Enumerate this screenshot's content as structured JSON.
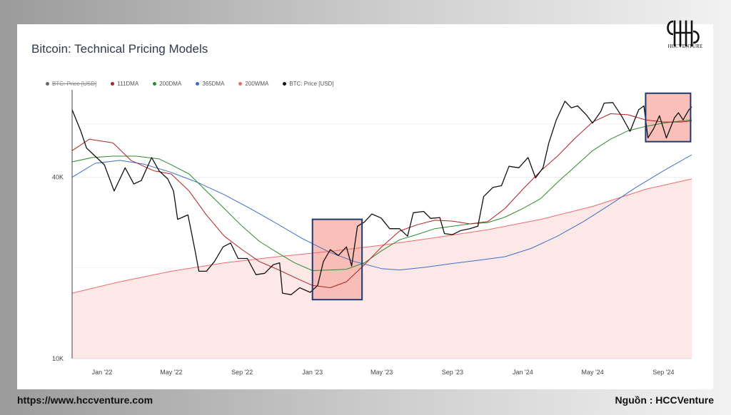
{
  "card": {
    "title": "Bitcoin: Technical Pricing Models"
  },
  "brand": {
    "name": "HCCVENTURE"
  },
  "footer": {
    "url": "https://www.hccventure.com",
    "source": "Nguồn : HCCVenture"
  },
  "colors": {
    "price": "#111111",
    "dma111": "#b22222",
    "dma200": "#2e8b2e",
    "dma365": "#3b6fc4",
    "wma200": "#ef6b6b",
    "band_fill": "#fde8e8",
    "highlight_fill": "#f7b5ad",
    "highlight_border": "#1f3a6e"
  },
  "chart_data": {
    "type": "line",
    "title": "Bitcoin: Technical Pricing Models",
    "y_scale": "log",
    "y_ticks": [
      {
        "label": "10K",
        "value": 10000
      },
      {
        "label": "40K",
        "value": 40000
      }
    ],
    "ylim": [
      10000,
      78000
    ],
    "x_ticks": [
      {
        "label": "Jan '22",
        "date": "2022-01-01"
      },
      {
        "label": "May '22",
        "date": "2022-05-01"
      },
      {
        "label": "Sep '22",
        "date": "2022-09-01"
      },
      {
        "label": "Jan '23",
        "date": "2023-01-01"
      },
      {
        "label": "May '23",
        "date": "2023-05-01"
      },
      {
        "label": "Sep '23",
        "date": "2023-09-01"
      },
      {
        "label": "Jan '24",
        "date": "2024-01-01"
      },
      {
        "label": "May '24",
        "date": "2024-05-01"
      },
      {
        "label": "Sep '24",
        "date": "2024-09-01"
      }
    ],
    "x_range": [
      "2021-11-10",
      "2024-10-20"
    ],
    "legend": [
      {
        "name": "BTC: Price [USD]",
        "color": "#666666",
        "hidden": true
      },
      {
        "name": "111DMA",
        "color": "#b22222",
        "hidden": false
      },
      {
        "name": "200DMA",
        "color": "#2e8b2e",
        "hidden": false
      },
      {
        "name": "365DMA",
        "color": "#3b6fc4",
        "hidden": false
      },
      {
        "name": "200WMA",
        "color": "#ef6b6b",
        "hidden": false
      },
      {
        "name": "BTC: Price [USD]",
        "color": "#111111",
        "hidden": false
      }
    ],
    "series": [
      {
        "name": "BTC: Price [USD]",
        "x": [
          "2021-11-10",
          "2021-11-25",
          "2021-12-05",
          "2021-12-20",
          "2022-01-05",
          "2022-01-22",
          "2022-02-10",
          "2022-02-25",
          "2022-03-10",
          "2022-03-28",
          "2022-04-10",
          "2022-04-25",
          "2022-05-05",
          "2022-05-12",
          "2022-05-30",
          "2022-06-12",
          "2022-06-18",
          "2022-07-01",
          "2022-07-15",
          "2022-07-30",
          "2022-08-12",
          "2022-08-25",
          "2022-09-10",
          "2022-09-25",
          "2022-10-10",
          "2022-10-25",
          "2022-11-05",
          "2022-11-10",
          "2022-11-25",
          "2022-12-10",
          "2022-12-28",
          "2023-01-10",
          "2023-01-20",
          "2023-02-01",
          "2023-02-15",
          "2023-03-01",
          "2023-03-10",
          "2023-03-20",
          "2023-04-01",
          "2023-04-14",
          "2023-04-30",
          "2023-05-15",
          "2023-06-01",
          "2023-06-15",
          "2023-06-25",
          "2023-07-13",
          "2023-07-25",
          "2023-08-10",
          "2023-08-18",
          "2023-09-01",
          "2023-09-15",
          "2023-10-01",
          "2023-10-15",
          "2023-10-25",
          "2023-11-10",
          "2023-11-25",
          "2023-12-08",
          "2023-12-25",
          "2024-01-10",
          "2024-01-23",
          "2024-02-05",
          "2024-02-15",
          "2024-02-28",
          "2024-03-14",
          "2024-03-25",
          "2024-04-05",
          "2024-04-20",
          "2024-05-01",
          "2024-05-15",
          "2024-05-21",
          "2024-06-05",
          "2024-06-20",
          "2024-07-05",
          "2024-07-20",
          "2024-07-29",
          "2024-08-05",
          "2024-08-15",
          "2024-08-25",
          "2024-09-06",
          "2024-09-20",
          "2024-09-27",
          "2024-10-05",
          "2024-10-15",
          "2024-10-20"
        ],
        "values": [
          67000,
          57000,
          50000,
          47000,
          44000,
          36000,
          43000,
          38000,
          39000,
          46500,
          42000,
          39500,
          36000,
          29000,
          30000,
          22500,
          19500,
          19500,
          21000,
          23500,
          24200,
          21500,
          21500,
          19000,
          19200,
          20500,
          20800,
          16500,
          16300,
          17200,
          16600,
          17500,
          21000,
          23000,
          22000,
          23500,
          20300,
          27500,
          28400,
          30200,
          29300,
          27000,
          27000,
          25500,
          30500,
          30800,
          29200,
          29400,
          26000,
          25800,
          26600,
          27000,
          27500,
          34500,
          37000,
          37500,
          43500,
          43000,
          46500,
          39800,
          43000,
          52000,
          62000,
          71500,
          68000,
          69000,
          64500,
          60500,
          66000,
          70500,
          70800,
          64000,
          56800,
          67000,
          69000,
          54000,
          58000,
          64000,
          54000,
          63000,
          65500,
          62000,
          67000,
          68500
        ]
      },
      {
        "name": "111DMA",
        "x": [
          "2021-11-10",
          "2021-12-10",
          "2022-01-20",
          "2022-02-20",
          "2022-04-01",
          "2022-05-01",
          "2022-06-01",
          "2022-07-01",
          "2022-08-01",
          "2022-09-01",
          "2022-10-01",
          "2022-11-01",
          "2022-12-01",
          "2023-01-01",
          "2023-02-01",
          "2023-03-01",
          "2023-04-01",
          "2023-05-01",
          "2023-06-01",
          "2023-07-01",
          "2023-08-01",
          "2023-09-01",
          "2023-10-01",
          "2023-11-01",
          "2023-12-01",
          "2024-01-01",
          "2024-02-01",
          "2024-03-01",
          "2024-04-01",
          "2024-05-01",
          "2024-06-01",
          "2024-07-01",
          "2024-08-01",
          "2024-09-01",
          "2024-10-01",
          "2024-10-20"
        ],
        "values": [
          49000,
          53500,
          52000,
          45500,
          42000,
          41000,
          36000,
          30000,
          25500,
          23000,
          21000,
          19800,
          18600,
          17500,
          17200,
          18000,
          20500,
          23500,
          26500,
          27800,
          28800,
          28600,
          28000,
          28500,
          31500,
          36500,
          42000,
          47000,
          54000,
          61000,
          65000,
          64500,
          62000,
          61000,
          61000,
          61500
        ]
      },
      {
        "name": "200DMA",
        "x": [
          "2021-11-10",
          "2021-12-15",
          "2022-01-20",
          "2022-03-01",
          "2022-04-10",
          "2022-05-01",
          "2022-06-01",
          "2022-07-01",
          "2022-08-01",
          "2022-09-01",
          "2022-10-01",
          "2022-11-01",
          "2022-12-01",
          "2023-01-01",
          "2023-02-01",
          "2023-03-01",
          "2023-04-01",
          "2023-05-01",
          "2023-06-01",
          "2023-07-01",
          "2023-08-01",
          "2023-09-01",
          "2023-10-01",
          "2023-11-01",
          "2023-12-01",
          "2024-01-01",
          "2024-02-01",
          "2024-03-01",
          "2024-04-01",
          "2024-05-01",
          "2024-06-01",
          "2024-07-01",
          "2024-08-01",
          "2024-09-01",
          "2024-10-01",
          "2024-10-20"
        ],
        "values": [
          45000,
          46500,
          47000,
          47000,
          46000,
          44000,
          41000,
          36000,
          31500,
          27500,
          24500,
          22500,
          20800,
          19600,
          19700,
          19800,
          20800,
          22800,
          24800,
          25800,
          27000,
          27500,
          28000,
          28300,
          29500,
          31500,
          34000,
          38500,
          43500,
          49000,
          53500,
          57000,
          59000,
          60500,
          61500,
          62000
        ]
      },
      {
        "name": "365DMA",
        "x": [
          "2021-11-10",
          "2021-12-20",
          "2022-02-01",
          "2022-03-15",
          "2022-05-01",
          "2022-06-15",
          "2022-08-01",
          "2022-09-15",
          "2022-11-01",
          "2022-12-15",
          "2023-02-01",
          "2023-03-15",
          "2023-05-01",
          "2023-06-01",
          "2023-07-15",
          "2023-09-01",
          "2023-10-15",
          "2023-12-01",
          "2024-01-15",
          "2024-03-01",
          "2024-04-15",
          "2024-06-01",
          "2024-07-15",
          "2024-09-01",
          "2024-10-20"
        ],
        "values": [
          40000,
          44500,
          45500,
          44200,
          41500,
          38500,
          35000,
          31500,
          28000,
          25000,
          22500,
          21000,
          19900,
          19700,
          20100,
          20700,
          21200,
          21800,
          23200,
          25500,
          28500,
          32500,
          37000,
          42000,
          47500
        ]
      },
      {
        "name": "200WMA",
        "x": [
          "2021-11-10",
          "2022-02-01",
          "2022-05-01",
          "2022-08-01",
          "2022-11-01",
          "2023-02-01",
          "2023-05-01",
          "2023-08-01",
          "2023-11-01",
          "2024-02-01",
          "2024-05-01",
          "2024-08-01",
          "2024-10-20"
        ],
        "values": [
          16500,
          18000,
          19500,
          20800,
          21800,
          22700,
          23800,
          25200,
          26800,
          29000,
          32000,
          36500,
          39500
        ]
      }
    ],
    "highlights": [
      {
        "start": "2023-01-01",
        "end": "2023-03-28",
        "low": 15700,
        "high": 29000
      },
      {
        "start": "2024-08-01",
        "end": "2024-10-18",
        "low": 52500,
        "high": 76000
      }
    ]
  }
}
